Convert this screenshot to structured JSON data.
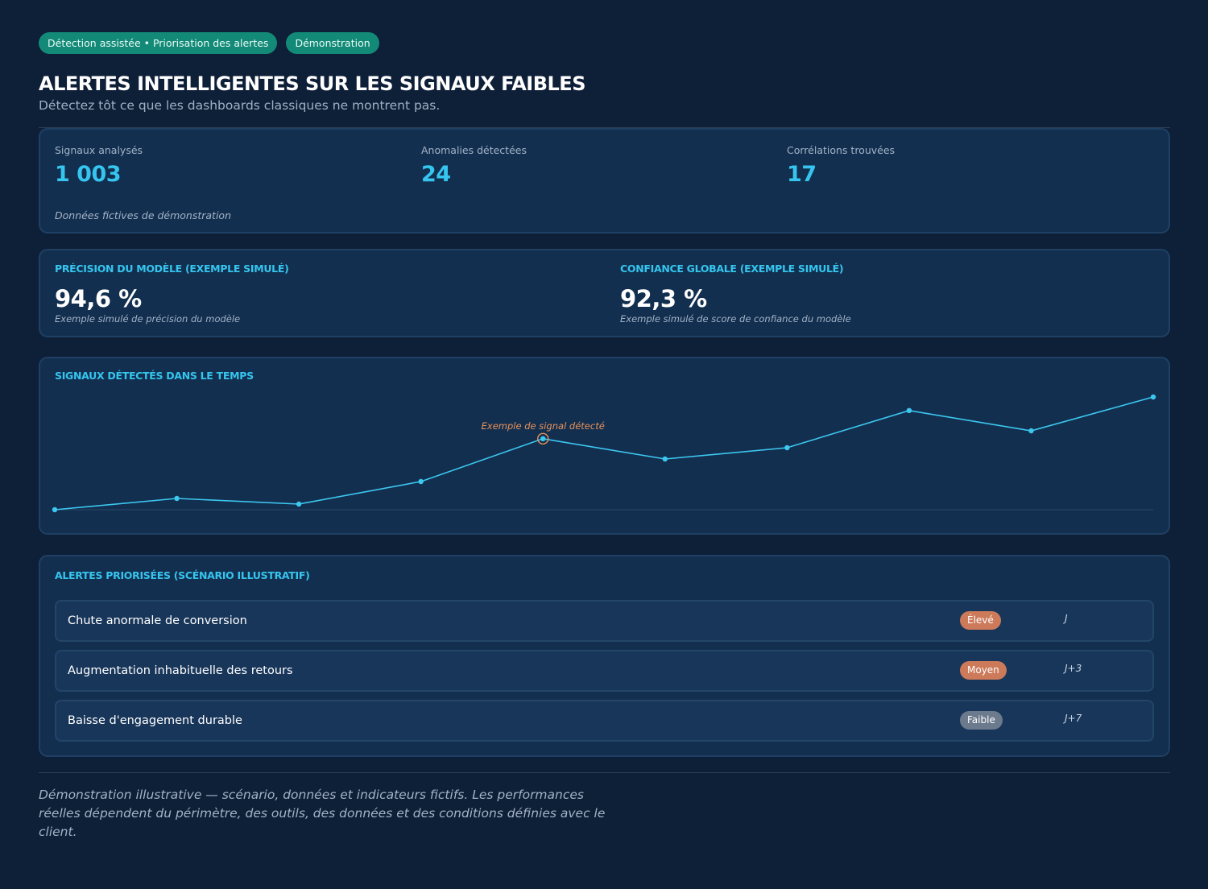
{
  "header": {
    "tags": [
      "Détection assistée • Priorisation des alertes",
      "Démonstration"
    ],
    "title": "ALERTES INTELLIGENTES SUR LES SIGNAUX FAIBLES",
    "subtitle": "Détectez tôt ce que les dashboards classiques ne montrent pas."
  },
  "kpis": {
    "items": [
      {
        "label": "Signaux analysés",
        "value": "1 003"
      },
      {
        "label": "Anomalies détectées",
        "value": "24"
      },
      {
        "label": "Corrélations trouvées",
        "value": "17"
      }
    ],
    "note": "Données fictives de démonstration"
  },
  "metrics": [
    {
      "title": "PRÉCISION DU MODÈLE (EXEMPLE SIMULÉ)",
      "value": "94,6 %",
      "note": "Exemple simulé de précision du modèle"
    },
    {
      "title": "CONFIANCE GLOBALE (EXEMPLE SIMULÉ)",
      "value": "92,3 %",
      "note": "Exemple simulé de score de confiance du modèle"
    }
  ],
  "chart": {
    "title": "SIGNAUX DÉTECTÉS DANS LE TEMPS",
    "annotation": "Exemple de signal détecté",
    "line_color": "#3cc8ef",
    "highlight_color": "#e8925a"
  },
  "chart_data": {
    "type": "line",
    "x": [
      1,
      2,
      3,
      4,
      5,
      6,
      7,
      8,
      9,
      10
    ],
    "series": [
      {
        "values": [
          0,
          10,
          5,
          25,
          63,
          45,
          55,
          88,
          70,
          100
        ]
      }
    ],
    "highlight_index": 4,
    "grid": false,
    "title": "SIGNAUX DÉTECTÉS DANS LE TEMPS",
    "xlabel": "",
    "ylabel": ""
  },
  "alerts": {
    "title": "ALERTES PRIORISÉES (SCÉNARIO ILLUSTRATIF)",
    "rows": [
      {
        "title": "Chute anormale de conversion",
        "level": "Élevé",
        "eta": "J",
        "color": "#cc7a5a"
      },
      {
        "title": "Augmentation inhabituelle des retours",
        "level": "Moyen",
        "eta": "J+3",
        "color": "#cc7a5a"
      },
      {
        "title": "Baisse d'engagement durable",
        "level": "Faible",
        "eta": "J+7",
        "color": "#6b7a8c"
      }
    ]
  },
  "footer": {
    "text": "Démonstration illustrative — scénario, données et indicateurs fictifs. Les performances réelles dépendent du périmètre, des outils, des données et des conditions définies avec le client."
  }
}
